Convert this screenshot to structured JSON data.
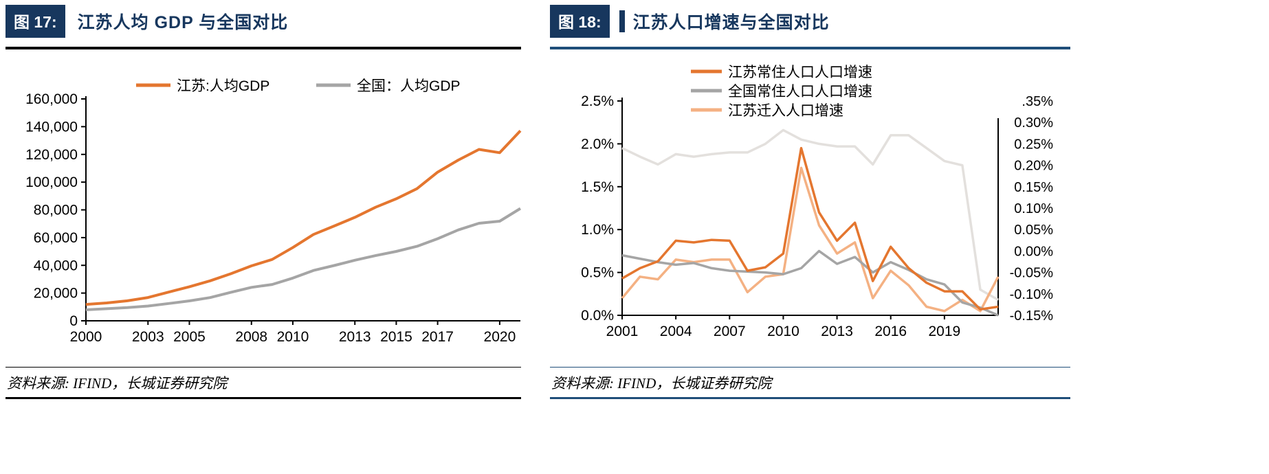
{
  "colors": {
    "header_blue": "#17375e",
    "left_rule": "#000000",
    "right_rule": "#1f4e79",
    "axis": "#000000",
    "orange": "#e4762f",
    "gray": "#a5a5a5",
    "peach": "#f4b183",
    "pale": "#e3e0dd"
  },
  "panels": [
    {
      "fig_label": "图 17:",
      "title": "江苏人均 GDP 与全国对比",
      "source": "资料来源: IFIND，长城证券研究院"
    },
    {
      "fig_label": "图 18:",
      "title": "江苏人口增速与全国对比",
      "source": "资料来源: IFIND，长城证券研究院"
    }
  ],
  "chart_data": [
    {
      "type": "line",
      "fig_label": "图 17:",
      "title": "江苏人均 GDP 与全国对比",
      "grid": false,
      "legend_position": "top-horizontal",
      "x": [
        2000,
        2001,
        2002,
        2003,
        2004,
        2005,
        2006,
        2007,
        2008,
        2009,
        2010,
        2011,
        2012,
        2013,
        2014,
        2015,
        2016,
        2017,
        2018,
        2019,
        2020,
        2021
      ],
      "xticks": [
        2000,
        2003,
        2005,
        2008,
        2010,
        2013,
        2015,
        2017,
        2020
      ],
      "ylim": [
        0,
        160000
      ],
      "yticks": [
        {
          "value": 0,
          "label": "0"
        },
        {
          "value": 20000,
          "label": "20,000"
        },
        {
          "value": 40000,
          "label": "40,000"
        },
        {
          "value": 60000,
          "label": "60,000"
        },
        {
          "value": 80000,
          "label": "80,000"
        },
        {
          "value": 100000,
          "label": "100,000"
        },
        {
          "value": 120000,
          "label": "120,000"
        },
        {
          "value": 140000,
          "label": "140,000"
        },
        {
          "value": 160000,
          "label": "160,000"
        }
      ],
      "series": [
        {
          "name": "全国：人均GDP",
          "color": "#a5a5a5",
          "in_legend": true,
          "legend_order": 1,
          "values": [
            7942,
            8717,
            9506,
            10666,
            12487,
            14368,
            16738,
            20494,
            24100,
            26180,
            30808,
            36302,
            39874,
            43684,
            47005,
            50028,
            53680,
            59201,
            65534,
            70328,
            71828,
            80976
          ]
        },
        {
          "name": "江苏:人均GDP",
          "color": "#e4762f",
          "in_legend": true,
          "legend_order": 0,
          "values": [
            11765,
            12882,
            14391,
            16809,
            20705,
            24560,
            28814,
            33928,
            39622,
            44253,
            52840,
            62290,
            68347,
            74607,
            81874,
            87995,
            95257,
            107189,
            115930,
            123607,
            121231,
            137039
          ]
        }
      ],
      "source": "资料来源: IFIND，长城证券研究院"
    },
    {
      "type": "line",
      "fig_label": "图 18:",
      "title": "江苏人口增速与全国对比",
      "grid": false,
      "legend_position": "top-vertical",
      "x": [
        2001,
        2002,
        2003,
        2004,
        2005,
        2006,
        2007,
        2008,
        2009,
        2010,
        2011,
        2012,
        2013,
        2014,
        2015,
        2016,
        2017,
        2018,
        2019,
        2020,
        2021,
        2022
      ],
      "xticks": [
        2001,
        2004,
        2007,
        2010,
        2013,
        2016,
        2019
      ],
      "ylim": [
        0,
        2.5
      ],
      "yticks": [
        {
          "value": 0.0,
          "label": "0.0%"
        },
        {
          "value": 0.5,
          "label": "0.5%"
        },
        {
          "value": 1.0,
          "label": "1.0%"
        },
        {
          "value": 1.5,
          "label": "1.5%"
        },
        {
          "value": 2.0,
          "label": "2.0%"
        },
        {
          "value": 2.5,
          "label": "2.5%"
        }
      ],
      "right_axis": {
        "max": 0.35,
        "min": -0.15,
        "step": 0.05,
        "labels": [
          ".35%",
          "0.30%",
          "0.25%",
          "0.20%",
          "0.15%",
          "0.10%",
          "0.05%",
          "0.00%",
          "-0.05%",
          "-0.10%",
          "-0.15%"
        ]
      },
      "series": [
        {
          "name": "",
          "color": "#e3e0dd",
          "in_legend": false,
          "values": [
            1.95,
            1.85,
            1.76,
            1.88,
            1.85,
            1.88,
            1.9,
            1.9,
            2.0,
            2.16,
            2.05,
            2.0,
            1.97,
            1.97,
            1.76,
            2.1,
            2.1,
            1.95,
            1.8,
            1.75,
            0.3,
            0.18
          ]
        },
        {
          "name": "江苏迁入人口增速",
          "color": "#f4b183",
          "in_legend": true,
          "legend_order": 2,
          "values": [
            0.2,
            0.45,
            0.42,
            0.65,
            0.62,
            0.65,
            0.65,
            0.27,
            0.45,
            0.48,
            1.72,
            1.05,
            0.72,
            0.85,
            0.2,
            0.52,
            0.35,
            0.1,
            0.05,
            0.18,
            0.05,
            0.45
          ]
        },
        {
          "name": "全国常住人口人口增速",
          "color": "#a5a5a5",
          "in_legend": true,
          "legend_order": 1,
          "values": [
            0.7,
            0.66,
            0.62,
            0.59,
            0.61,
            0.55,
            0.52,
            0.51,
            0.5,
            0.48,
            0.55,
            0.75,
            0.6,
            0.68,
            0.5,
            0.62,
            0.53,
            0.42,
            0.36,
            0.15,
            0.09,
            0.0
          ]
        },
        {
          "name": "江苏常住人口人口增速",
          "color": "#e4762f",
          "in_legend": true,
          "legend_order": 0,
          "values": [
            0.43,
            0.55,
            0.63,
            0.87,
            0.85,
            0.88,
            0.87,
            0.52,
            0.56,
            0.72,
            1.95,
            1.2,
            0.87,
            1.08,
            0.4,
            0.8,
            0.55,
            0.38,
            0.28,
            0.28,
            0.07,
            0.1
          ]
        }
      ],
      "source": "资料来源: IFIND，长城证券研究院"
    }
  ]
}
